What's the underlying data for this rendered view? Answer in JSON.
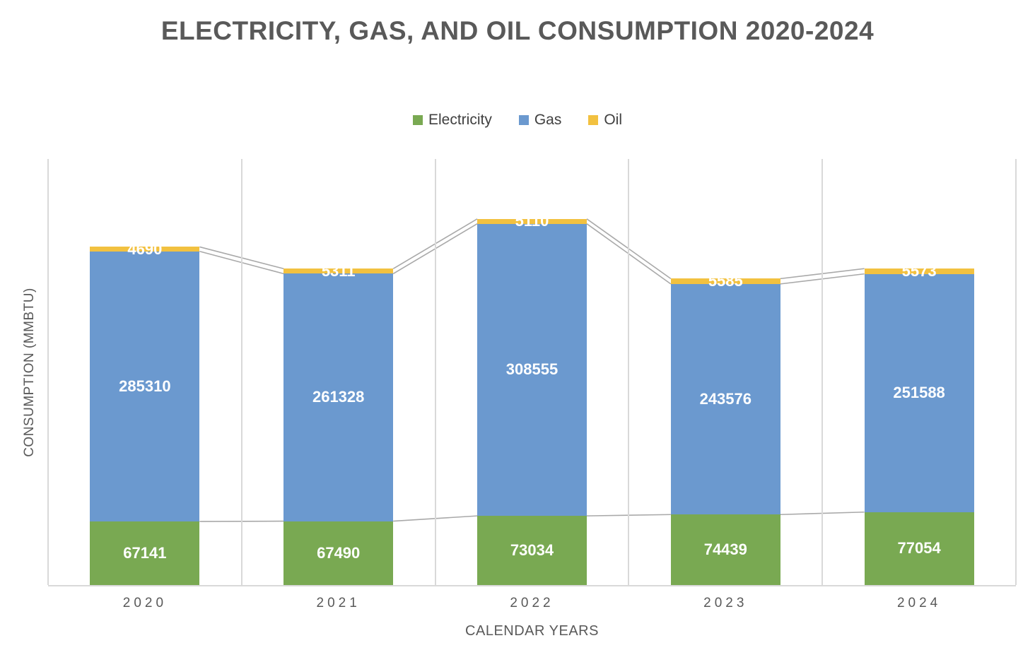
{
  "title": "ELECTRICITY, GAS, AND OIL CONSUMPTION 2020-2024",
  "chart_data": {
    "type": "bar",
    "stacked": true,
    "title": "ELECTRICITY, GAS, AND OIL CONSUMPTION 2020-2024",
    "categories": [
      "2020",
      "2021",
      "2022",
      "2023",
      "2024"
    ],
    "series": [
      {
        "name": "Electricity",
        "color": "#79A952",
        "values": [
          67141,
          67490,
          73034,
          74439,
          77054
        ]
      },
      {
        "name": "Gas",
        "color": "#6B99CF",
        "values": [
          285310,
          261328,
          308555,
          243576,
          251588
        ]
      },
      {
        "name": "Oil",
        "color": "#F2C140",
        "values": [
          4690,
          5311,
          5110,
          5585,
          5573
        ]
      }
    ],
    "xlabel": "CALENDAR YEARS",
    "ylabel": "CONSUMPTION (MMBTU)",
    "ylim": [
      0,
      450000
    ],
    "grid": "vertical-only",
    "gridline_color": "#D9D9D9",
    "series_line_color": "#A9A9A9",
    "label_color": "#FFFFFF",
    "legend_position": "top",
    "series_lines": true,
    "y_tick_labels_shown": false
  }
}
